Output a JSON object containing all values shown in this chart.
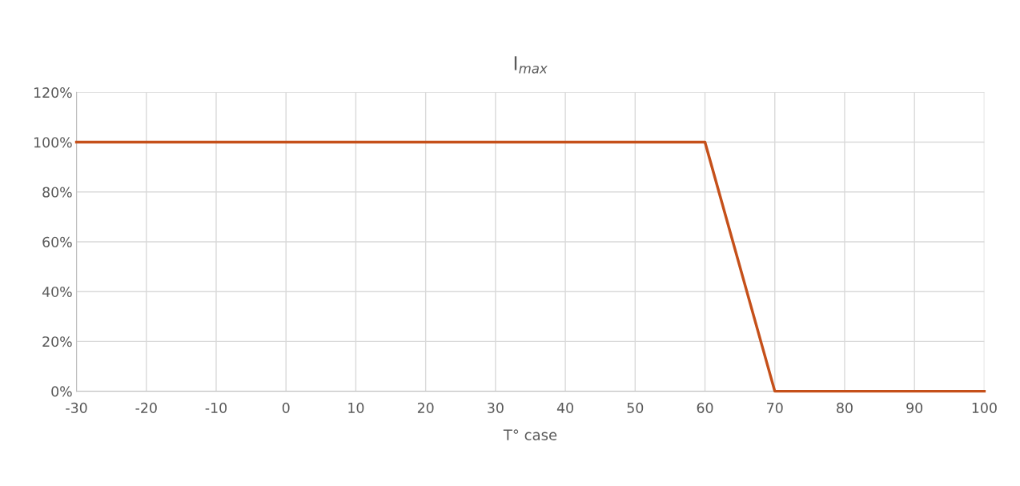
{
  "chart_data": {
    "type": "line",
    "title": "I$_{max}$",
    "xlabel": "T° case",
    "series": [
      {
        "color": "#c5501a",
        "x": [
          -30,
          60,
          70,
          100
        ],
        "values": [
          100,
          100,
          0,
          0
        ]
      }
    ],
    "xlim": [
      -30,
      100
    ],
    "xticks": [
      -30,
      -20,
      -10,
      0,
      10,
      20,
      30,
      40,
      50,
      60,
      70,
      80,
      90,
      100
    ],
    "ylim": [
      0,
      120
    ],
    "yticks": [
      {
        "value": 0,
        "label": "0%"
      },
      {
        "value": 20,
        "label": "20%"
      },
      {
        "value": 40,
        "label": "40%"
      },
      {
        "value": 60,
        "label": "60%"
      },
      {
        "value": 80,
        "label": "80%"
      },
      {
        "value": 100,
        "label": "100%"
      },
      {
        "value": 120,
        "label": "120%"
      }
    ],
    "grid": true,
    "marker": "none",
    "line_style": "solid"
  }
}
